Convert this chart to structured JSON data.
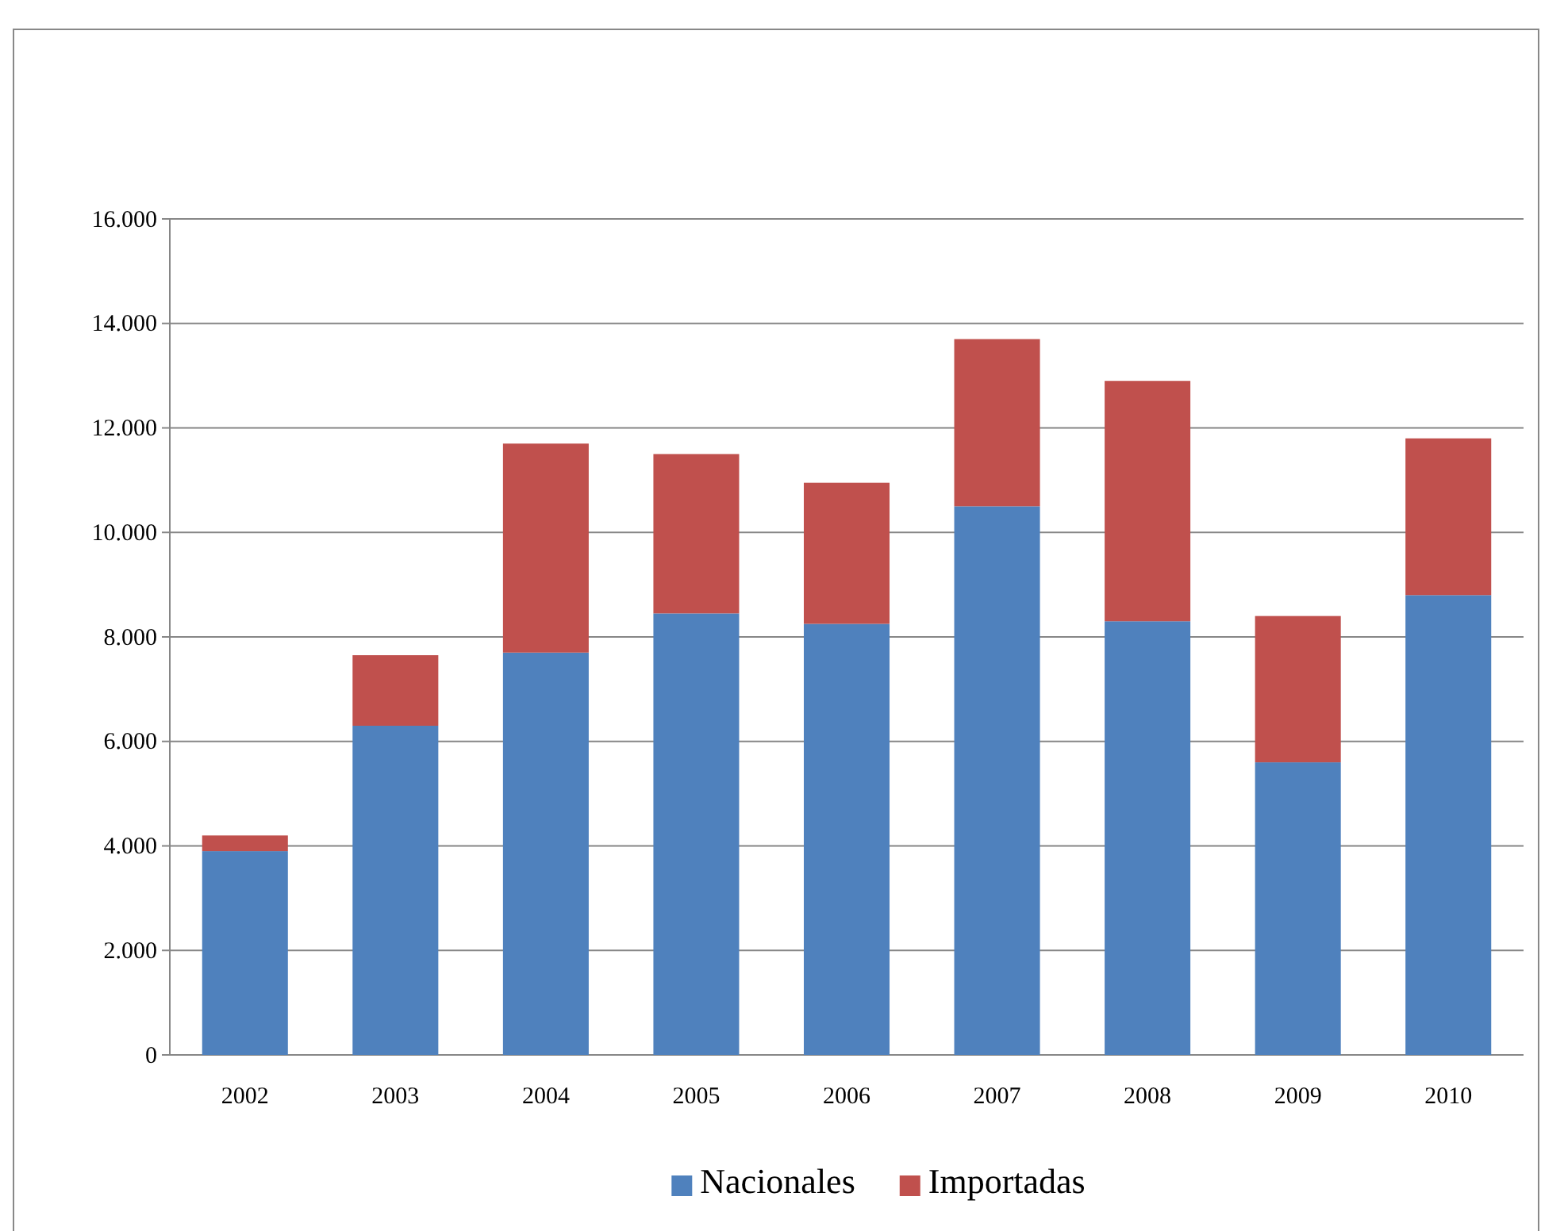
{
  "chart_data": {
    "type": "bar",
    "stacked": true,
    "categories": [
      "2002",
      "2003",
      "2004",
      "2005",
      "2006",
      "2007",
      "2008",
      "2009",
      "2010"
    ],
    "series": [
      {
        "name": "Nacionales",
        "color": "#4f81bd",
        "values": [
          3900,
          6300,
          7700,
          8450,
          8250,
          10500,
          8300,
          5600,
          8800
        ]
      },
      {
        "name": "Importadas",
        "color": "#c0504d",
        "values": [
          300,
          1350,
          4000,
          3050,
          2700,
          3200,
          4600,
          2800,
          3000
        ]
      }
    ],
    "ylim": [
      0,
      16000
    ],
    "yticks": [
      0,
      {
        "value": 2000,
        "label": "2.000"
      },
      {
        "value": 4000,
        "label": "4.000"
      },
      {
        "value": 6000,
        "label": "6.000"
      },
      {
        "value": 8000,
        "label": "8.000"
      },
      {
        "value": 10000,
        "label": "10.000"
      },
      {
        "value": 12000,
        "label": "12.000"
      },
      {
        "value": 14000,
        "label": "14.000"
      },
      {
        "value": 16000,
        "label": "16.000"
      }
    ],
    "grid": "y",
    "legend": "bottom"
  }
}
